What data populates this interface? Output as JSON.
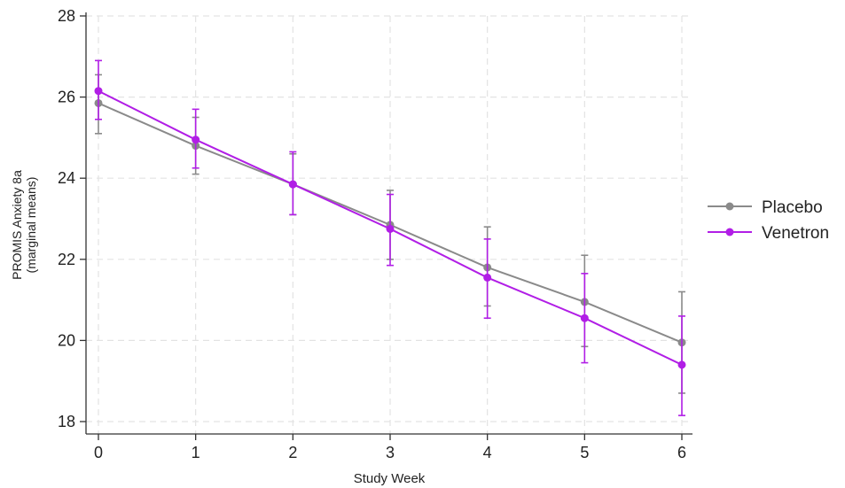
{
  "chart_data": {
    "type": "line",
    "title": "",
    "xlabel": "Study Week",
    "ylabel": "PROMIS Anxiety 8a",
    "ylabel_sub": "(marginal means)",
    "x": [
      0,
      1,
      2,
      3,
      4,
      5,
      6
    ],
    "x_ticks": [
      "0",
      "1",
      "2",
      "3",
      "4",
      "5",
      "6"
    ],
    "y_ticks": [
      "18",
      "20",
      "22",
      "24",
      "26",
      "28"
    ],
    "ylim": [
      18,
      28
    ],
    "xlim": [
      0,
      6
    ],
    "grid": true,
    "legend_position": "right",
    "series": [
      {
        "name": "Placebo",
        "color": "#8a8a8a",
        "values": [
          25.85,
          24.8,
          23.85,
          22.85,
          21.8,
          20.95,
          19.95
        ],
        "ci_low": [
          25.1,
          24.1,
          23.1,
          22.0,
          20.85,
          19.85,
          18.7
        ],
        "ci_high": [
          26.55,
          25.5,
          24.6,
          23.7,
          22.8,
          22.1,
          21.2
        ]
      },
      {
        "name": "Venetron",
        "color": "#b11ee6",
        "values": [
          26.15,
          24.95,
          23.85,
          22.75,
          21.55,
          20.55,
          19.4
        ],
        "ci_low": [
          25.45,
          24.25,
          23.1,
          21.85,
          20.55,
          19.45,
          18.15
        ],
        "ci_high": [
          26.9,
          25.7,
          24.65,
          23.6,
          22.5,
          21.65,
          20.6
        ]
      }
    ]
  }
}
